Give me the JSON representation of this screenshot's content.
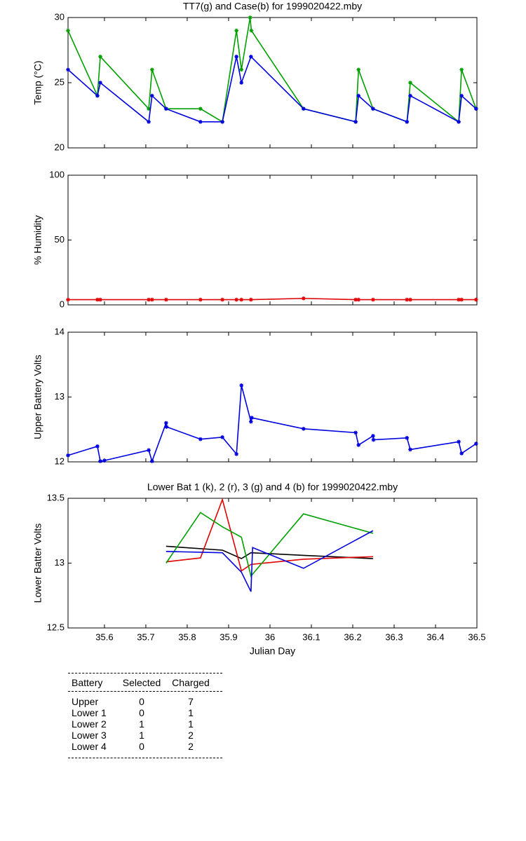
{
  "chart_data": [
    {
      "type": "line",
      "title": "TT7(g) and Case(b) for 1999020422.mby",
      "ylabel": "Temp (°C)",
      "xlim": [
        35.512,
        36.5
      ],
      "ylim": [
        20,
        30
      ],
      "yticks": [
        20,
        25,
        30
      ],
      "markers": true,
      "series": [
        {
          "color": "#00a000",
          "x": [
            35.512,
            35.583,
            35.59,
            35.707,
            35.715,
            35.749,
            35.832,
            35.885,
            35.919,
            35.931,
            35.952,
            35.955,
            36.081,
            36.207,
            36.214,
            36.249,
            36.331,
            36.339,
            36.456,
            36.463,
            36.498
          ],
          "values": [
            29,
            24,
            27,
            23,
            26,
            23,
            23,
            22,
            29,
            26,
            30,
            29,
            23,
            22,
            26,
            23,
            22,
            25,
            22,
            26,
            23
          ]
        },
        {
          "color": "#0000e0",
          "x": [
            35.512,
            35.583,
            35.59,
            35.707,
            35.715,
            35.749,
            35.832,
            35.885,
            35.919,
            35.931,
            35.954,
            36.081,
            36.207,
            36.214,
            36.249,
            36.331,
            36.339,
            36.456,
            36.463,
            36.498
          ],
          "values": [
            26,
            24,
            25,
            22,
            24,
            23,
            22,
            22,
            27,
            25,
            27,
            23,
            22,
            24,
            23,
            22,
            24,
            22,
            24,
            23
          ]
        }
      ]
    },
    {
      "type": "line",
      "ylabel": "% Humidity",
      "xlim": [
        35.512,
        36.5
      ],
      "ylim": [
        0,
        100
      ],
      "yticks": [
        0,
        50,
        100
      ],
      "markers": true,
      "series": [
        {
          "color": "#e00000",
          "x": [
            35.512,
            35.583,
            35.59,
            35.707,
            35.715,
            35.749,
            35.832,
            35.885,
            35.919,
            35.931,
            35.954,
            36.081,
            36.207,
            36.214,
            36.249,
            36.331,
            36.339,
            36.456,
            36.463,
            36.498
          ],
          "values": [
            4,
            4,
            4,
            4,
            4,
            4,
            4,
            4,
            4,
            4,
            4,
            5,
            4,
            4,
            4,
            4,
            4,
            4,
            4,
            4
          ]
        }
      ]
    },
    {
      "type": "line",
      "ylabel": "Upper Battery Volts",
      "xlim": [
        35.512,
        36.5
      ],
      "ylim": [
        12,
        14
      ],
      "yticks": [
        12,
        13,
        14
      ],
      "markers": true,
      "series": [
        {
          "color": "#0000e0",
          "x": [
            35.512,
            35.583,
            35.59,
            35.6,
            35.707,
            35.715,
            35.749,
            35.75,
            35.832,
            35.885,
            35.919,
            35.931,
            35.954,
            35.956,
            36.081,
            36.207,
            36.214,
            36.249,
            36.25,
            36.331,
            36.339,
            36.456,
            36.463,
            36.498
          ],
          "values": [
            12.1,
            12.24,
            12.01,
            12.02,
            12.18,
            12.01,
            12.6,
            12.54,
            12.35,
            12.38,
            12.12,
            13.18,
            12.62,
            12.68,
            12.51,
            12.45,
            12.26,
            12.4,
            12.34,
            12.37,
            12.19,
            12.31,
            12.13,
            12.28
          ]
        }
      ]
    },
    {
      "type": "line",
      "title": "Lower Bat 1 (k), 2 (r), 3 (g) and 4 (b) for 1999020422.mby",
      "ylabel": "Lower Batter Volts",
      "xlabel": "Julian Day",
      "xlim": [
        35.512,
        36.5
      ],
      "ylim": [
        12.5,
        13.5
      ],
      "yticks": [
        12.5,
        13,
        13.5
      ],
      "xticks": [
        35.6,
        35.7,
        35.8,
        35.9,
        36,
        36.1,
        36.2,
        36.3,
        36.4,
        36.5
      ],
      "markers": false,
      "series": [
        {
          "color": "#000000",
          "x": [
            35.749,
            35.885,
            35.931,
            35.954,
            36.081,
            36.249
          ],
          "values": [
            13.13,
            13.1,
            13.035,
            13.08,
            13.06,
            13.035
          ]
        },
        {
          "color": "#e00000",
          "x": [
            35.749,
            35.832,
            35.885,
            35.931,
            35.954,
            36.081,
            36.249
          ],
          "values": [
            13.01,
            13.04,
            13.49,
            12.94,
            12.99,
            13.03,
            13.05
          ]
        },
        {
          "color": "#00a000",
          "x": [
            35.749,
            35.832,
            35.885,
            35.931,
            35.954,
            36.081,
            36.249
          ],
          "values": [
            13.0,
            13.39,
            13.28,
            13.2,
            12.9,
            13.38,
            13.23
          ]
        },
        {
          "color": "#0000e0",
          "x": [
            35.749,
            35.885,
            35.931,
            35.954,
            35.958,
            36.081,
            36.249
          ],
          "values": [
            13.09,
            13.08,
            12.93,
            12.78,
            13.12,
            12.96,
            13.25
          ]
        }
      ]
    }
  ],
  "table": {
    "header": [
      "Battery",
      "Selected",
      "Charged"
    ],
    "rows": [
      [
        "Upper",
        0,
        7
      ],
      [
        "Lower 1",
        0,
        1
      ],
      [
        "Lower 2",
        1,
        1
      ],
      [
        "Lower 3",
        1,
        2
      ],
      [
        "Lower 4",
        0,
        2
      ]
    ]
  }
}
